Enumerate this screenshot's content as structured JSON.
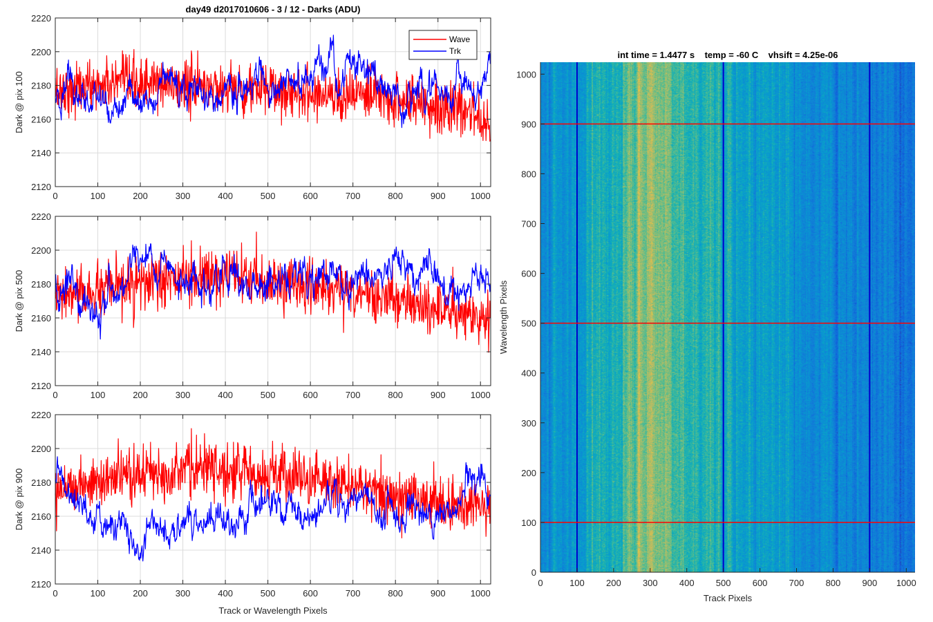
{
  "figure_title": "day49 d2017010606 - 3 / 12 - Darks (ADU)",
  "image_title": "int time = 1.4477 s    temp = -60 C    vhsift = 4.25e-06",
  "colors": {
    "wave": "#ff0000",
    "trk": "#0000ff",
    "grid": "#dcdcdc",
    "axis": "#262626"
  },
  "chart_data": [
    {
      "type": "line",
      "title": "day49 d2017010606 - 3 / 12 - Darks (ADU)",
      "xlabel": "",
      "ylabel": "Dark @ pix 100",
      "xlim": [
        0,
        1024
      ],
      "ylim": [
        2120,
        2220
      ],
      "xticks": [
        0,
        100,
        200,
        300,
        400,
        500,
        600,
        700,
        800,
        900,
        1000
      ],
      "yticks": [
        2120,
        2140,
        2160,
        2180,
        2200,
        2220
      ],
      "grid": true,
      "legend": {
        "position": "top-right",
        "entries": [
          "Wave",
          "Trk"
        ]
      },
      "series": [
        {
          "name": "Wave",
          "color": "#ff0000",
          "x": [
            0,
            100,
            200,
            300,
            400,
            500,
            600,
            700,
            800,
            900,
            1000,
            1023
          ],
          "values": [
            2177,
            2180,
            2181,
            2180,
            2179,
            2177,
            2176,
            2174,
            2172,
            2168,
            2162,
            2158
          ]
        },
        {
          "name": "Trk",
          "color": "#0000ff",
          "x": [
            0,
            100,
            200,
            300,
            400,
            500,
            600,
            700,
            800,
            900,
            1000,
            1023
          ],
          "values": [
            2172,
            2174,
            2168,
            2184,
            2175,
            2178,
            2185,
            2192,
            2172,
            2178,
            2172,
            2190
          ]
        }
      ]
    },
    {
      "type": "line",
      "xlabel": "",
      "ylabel": "Dark @ pix 500",
      "xlim": [
        0,
        1024
      ],
      "ylim": [
        2120,
        2220
      ],
      "xticks": [
        0,
        100,
        200,
        300,
        400,
        500,
        600,
        700,
        800,
        900,
        1000
      ],
      "yticks": [
        2120,
        2140,
        2160,
        2180,
        2200,
        2220
      ],
      "grid": true,
      "series": [
        {
          "name": "Wave",
          "color": "#ff0000",
          "x": [
            0,
            100,
            200,
            300,
            400,
            500,
            600,
            700,
            800,
            900,
            1000,
            1023
          ],
          "values": [
            2172,
            2175,
            2180,
            2183,
            2184,
            2182,
            2179,
            2176,
            2171,
            2165,
            2160,
            2158
          ]
        },
        {
          "name": "Trk",
          "color": "#0000ff",
          "x": [
            0,
            100,
            200,
            300,
            400,
            500,
            600,
            700,
            800,
            900,
            1000,
            1023
          ],
          "values": [
            2180,
            2160,
            2198,
            2175,
            2180,
            2182,
            2180,
            2182,
            2188,
            2175,
            2180,
            2185
          ]
        }
      ]
    },
    {
      "type": "line",
      "xlabel": "Track or Wavelength Pixels",
      "ylabel": "Dark @ pix 900",
      "xlim": [
        0,
        1024
      ],
      "ylim": [
        2120,
        2220
      ],
      "xticks": [
        0,
        100,
        200,
        300,
        400,
        500,
        600,
        700,
        800,
        900,
        1000
      ],
      "yticks": [
        2120,
        2140,
        2160,
        2180,
        2200,
        2220
      ],
      "grid": true,
      "series": [
        {
          "name": "Wave",
          "color": "#ff0000",
          "x": [
            0,
            100,
            200,
            300,
            400,
            500,
            600,
            700,
            800,
            900,
            1000,
            1023
          ],
          "values": [
            2178,
            2180,
            2185,
            2188,
            2187,
            2185,
            2182,
            2178,
            2173,
            2168,
            2165,
            2165
          ]
        },
        {
          "name": "Trk",
          "color": "#0000ff",
          "x": [
            0,
            100,
            200,
            300,
            400,
            500,
            600,
            700,
            800,
            900,
            1000,
            1023
          ],
          "values": [
            2182,
            2160,
            2148,
            2158,
            2162,
            2165,
            2160,
            2172,
            2168,
            2162,
            2180,
            2178
          ]
        }
      ]
    },
    {
      "type": "heatmap",
      "title": "int time = 1.4477 s    temp = -60 C    vhsift = 4.25e-06",
      "xlabel": "Track Pixels",
      "ylabel": "Wavelength Pixels",
      "xlim": [
        0,
        1024
      ],
      "ylim": [
        0,
        1024
      ],
      "xticks": [
        0,
        100,
        200,
        300,
        400,
        500,
        600,
        700,
        800,
        900,
        1000
      ],
      "yticks": [
        0,
        100,
        200,
        300,
        400,
        500,
        600,
        700,
        800,
        900,
        1000
      ],
      "colormap": "parula",
      "column_profile_x": [
        0,
        100,
        200,
        250,
        300,
        350,
        400,
        500,
        600,
        700,
        800,
        900,
        1000,
        1023
      ],
      "column_profile_level": [
        0.38,
        0.46,
        0.56,
        0.66,
        0.72,
        0.66,
        0.6,
        0.52,
        0.46,
        0.42,
        0.38,
        0.32,
        0.28,
        0.26
      ],
      "marker_columns": [
        100,
        500,
        900
      ],
      "marker_rows": [
        100,
        500,
        900
      ],
      "marker_column_color": "#0000cc",
      "marker_row_color": "#ff0000"
    }
  ]
}
